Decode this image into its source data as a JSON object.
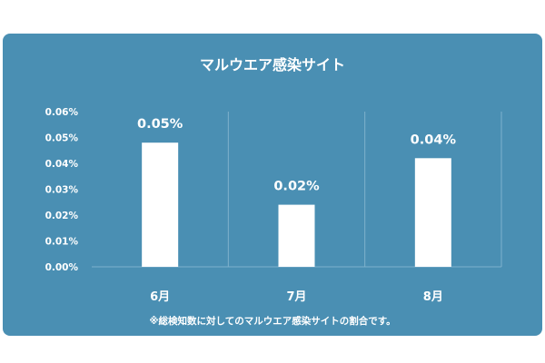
{
  "chart_data": {
    "type": "bar",
    "title": "マルウエア感染サイト",
    "categories": [
      "6月",
      "7月",
      "8月"
    ],
    "values": [
      0.048,
      0.024,
      0.042
    ],
    "data_labels": [
      "0.05%",
      "0.02%",
      "0.04%"
    ],
    "yticks": [
      "0.00%",
      "0.01%",
      "0.02%",
      "0.03%",
      "0.04%",
      "0.05%",
      "0.06%"
    ],
    "ylim": [
      0,
      0.06
    ],
    "grid": "vertical",
    "footnote": "※総検知数に対してのマルウエア感染サイトの割合です。",
    "colors": {
      "background": "#4a8fb3",
      "bar": "#ffffff",
      "text": "#ffffff",
      "grid": "#7fb2cd"
    }
  }
}
